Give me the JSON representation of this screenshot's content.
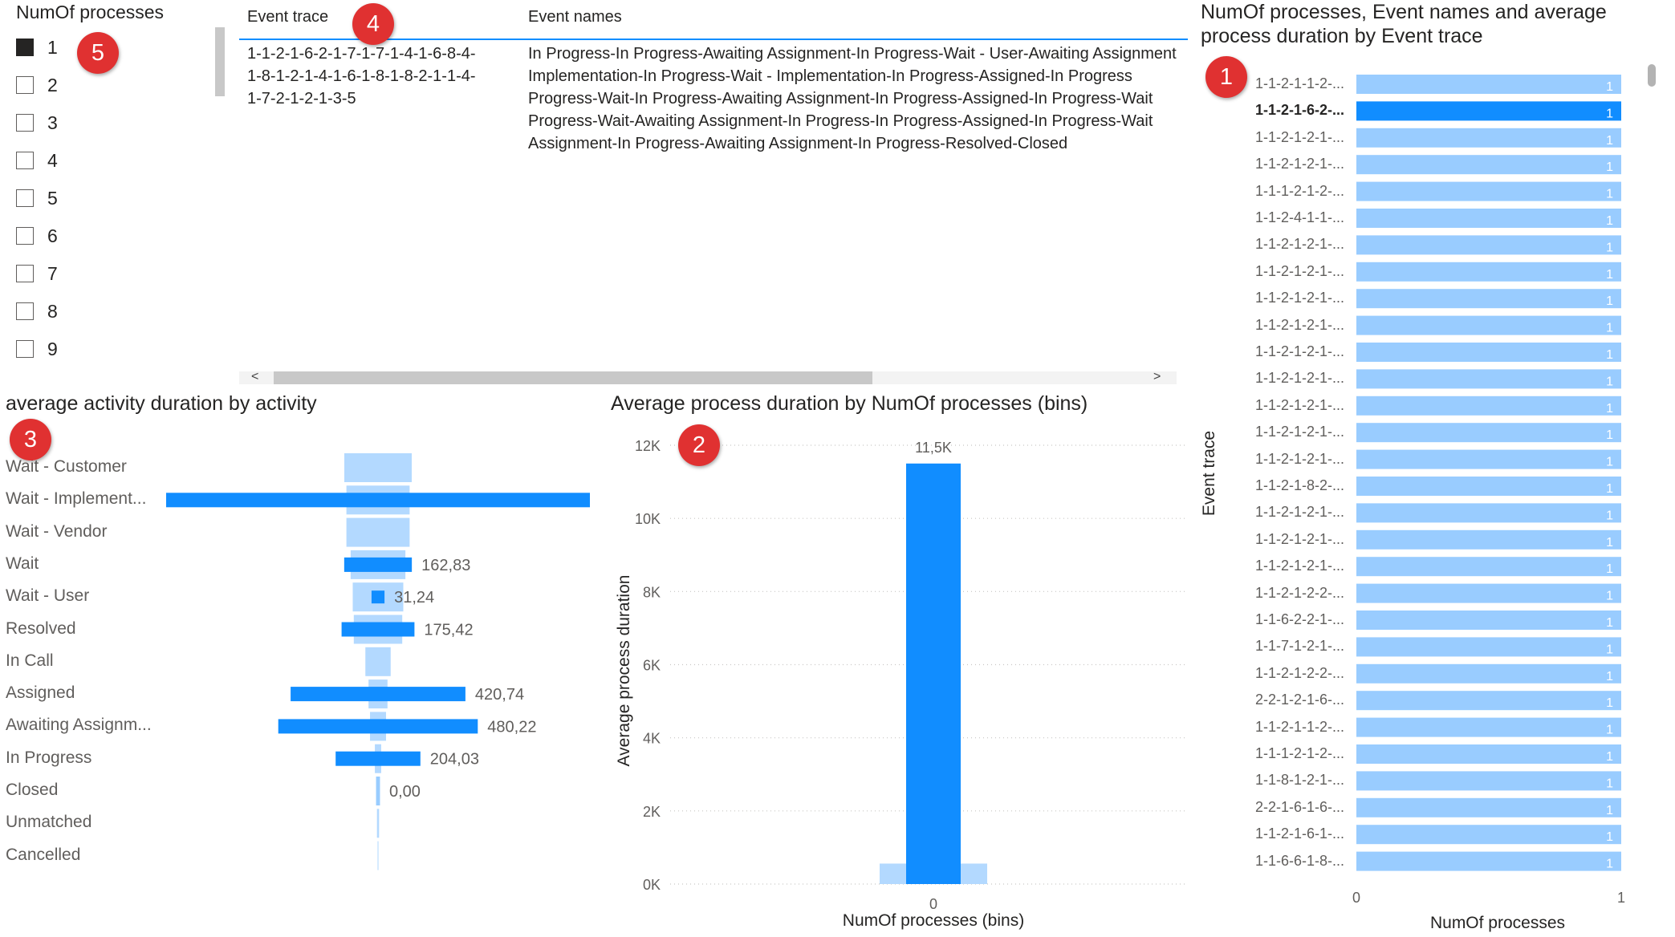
{
  "markers": [
    "1",
    "2",
    "3",
    "4",
    "5"
  ],
  "slicer": {
    "title": "NumOf processes",
    "items": [
      {
        "label": "1",
        "checked": true
      },
      {
        "label": "2",
        "checked": false
      },
      {
        "label": "3",
        "checked": false
      },
      {
        "label": "4",
        "checked": false
      },
      {
        "label": "5",
        "checked": false
      },
      {
        "label": "6",
        "checked": false
      },
      {
        "label": "7",
        "checked": false
      },
      {
        "label": "8",
        "checked": false
      },
      {
        "label": "9",
        "checked": false
      }
    ]
  },
  "table": {
    "columns": [
      "Event trace",
      "Event names"
    ],
    "event_trace": "1-1-2-1-6-2-1-7-1-7-1-4-1-6-8-4-\n1-8-1-2-1-4-1-6-1-8-1-8-2-1-1-4-\n1-7-2-1-2-1-3-5",
    "event_names": "In Progress-In Progress-Awaiting Assignment-In Progress-Wait - User-Awaiting Assignment\nImplementation-In Progress-Wait - Implementation-In Progress-Assigned-In Progress\nProgress-Wait-In Progress-Awaiting Assignment-In Progress-Assigned-In Progress-Wait\nProgress-Wait-Awaiting Assignment-In Progress-In Progress-Assigned-In Progress-Wait\nAssignment-In Progress-Awaiting Assignment-In Progress-Resolved-Closed",
    "scroll_left": "<",
    "scroll_right": ">"
  },
  "funnel": {
    "title": "average activity duration by activity",
    "chart_data": {
      "type": "bar",
      "categories": [
        "Wait - Customer",
        "Wait - Implement...",
        "Wait - Vendor",
        "Wait",
        "Wait - User",
        "Resolved",
        "In Call",
        "Assigned",
        "Awaiting Assignm...",
        "In Progress",
        "Closed",
        "Unmatched",
        "Cancelled"
      ],
      "values": [
        null,
        1020,
        null,
        162.83,
        31.24,
        175.42,
        null,
        420.74,
        480.22,
        204.03,
        0.0,
        null,
        null
      ],
      "labels": [
        "",
        "",
        "",
        "162,83",
        "31,24",
        "175,42",
        "",
        "420,74",
        "480,22",
        "204,03",
        "0,00",
        "",
        ""
      ],
      "background_values": [
        160,
        150,
        150,
        130,
        120,
        115,
        60,
        45,
        38,
        15,
        10,
        5,
        2
      ]
    }
  },
  "column_chart": {
    "title": "Average process duration by NumOf processes (bins)",
    "chart_data": {
      "type": "bar",
      "categories": [
        "0"
      ],
      "values": [
        11500
      ],
      "background_values": [
        560
      ],
      "data_label": "11,5K",
      "xlabel": "NumOf processes (bins)",
      "ylabel": "Average process duration",
      "ylim": [
        0,
        12000
      ],
      "yticks": [
        "0K",
        "2K",
        "4K",
        "6K",
        "8K",
        "10K",
        "12K"
      ]
    }
  },
  "bar_chart": {
    "title_line1": "NumOf processes, Event names and average",
    "title_line2": "process duration by Event trace",
    "chart_data": {
      "type": "bar",
      "categories": [
        "1-1-2-1-1-2-...",
        "1-1-2-1-6-2-...",
        "1-1-2-1-2-1-...",
        "1-1-2-1-2-1-...",
        "1-1-1-2-1-2-...",
        "1-1-2-4-1-1-...",
        "1-1-2-1-2-1-...",
        "1-1-2-1-2-1-...",
        "1-1-2-1-2-1-...",
        "1-1-2-1-2-1-...",
        "1-1-2-1-2-1-...",
        "1-1-2-1-2-1-...",
        "1-1-2-1-2-1-...",
        "1-1-2-1-2-1-...",
        "1-1-2-1-2-1-...",
        "1-1-2-1-8-2-...",
        "1-1-2-1-2-1-...",
        "1-1-2-1-2-1-...",
        "1-1-2-1-2-1-...",
        "1-1-2-1-2-2-...",
        "1-1-6-2-2-1-...",
        "1-1-7-1-2-1-...",
        "1-1-2-1-2-2-...",
        "2-2-1-2-1-6-...",
        "1-1-2-1-1-2-...",
        "1-1-1-2-1-2-...",
        "1-1-8-1-2-1-...",
        "2-2-1-6-1-6-...",
        "1-1-2-1-6-1-...",
        "1-1-6-6-1-8-..."
      ],
      "values": [
        1,
        1,
        1,
        1,
        1,
        1,
        1,
        1,
        1,
        1,
        1,
        1,
        1,
        1,
        1,
        1,
        1,
        1,
        1,
        1,
        1,
        1,
        1,
        1,
        1,
        1,
        1,
        1,
        1,
        1
      ],
      "data_label": "1",
      "selected_index": 1,
      "xlabel": "NumOf processes",
      "ylabel": "Event trace",
      "xlim": [
        0,
        1
      ],
      "xticks": [
        "0",
        "1"
      ]
    }
  },
  "colors": {
    "selected": "#118dff",
    "unselected": "#99ccff",
    "background_bar": "#b3d9ff"
  }
}
